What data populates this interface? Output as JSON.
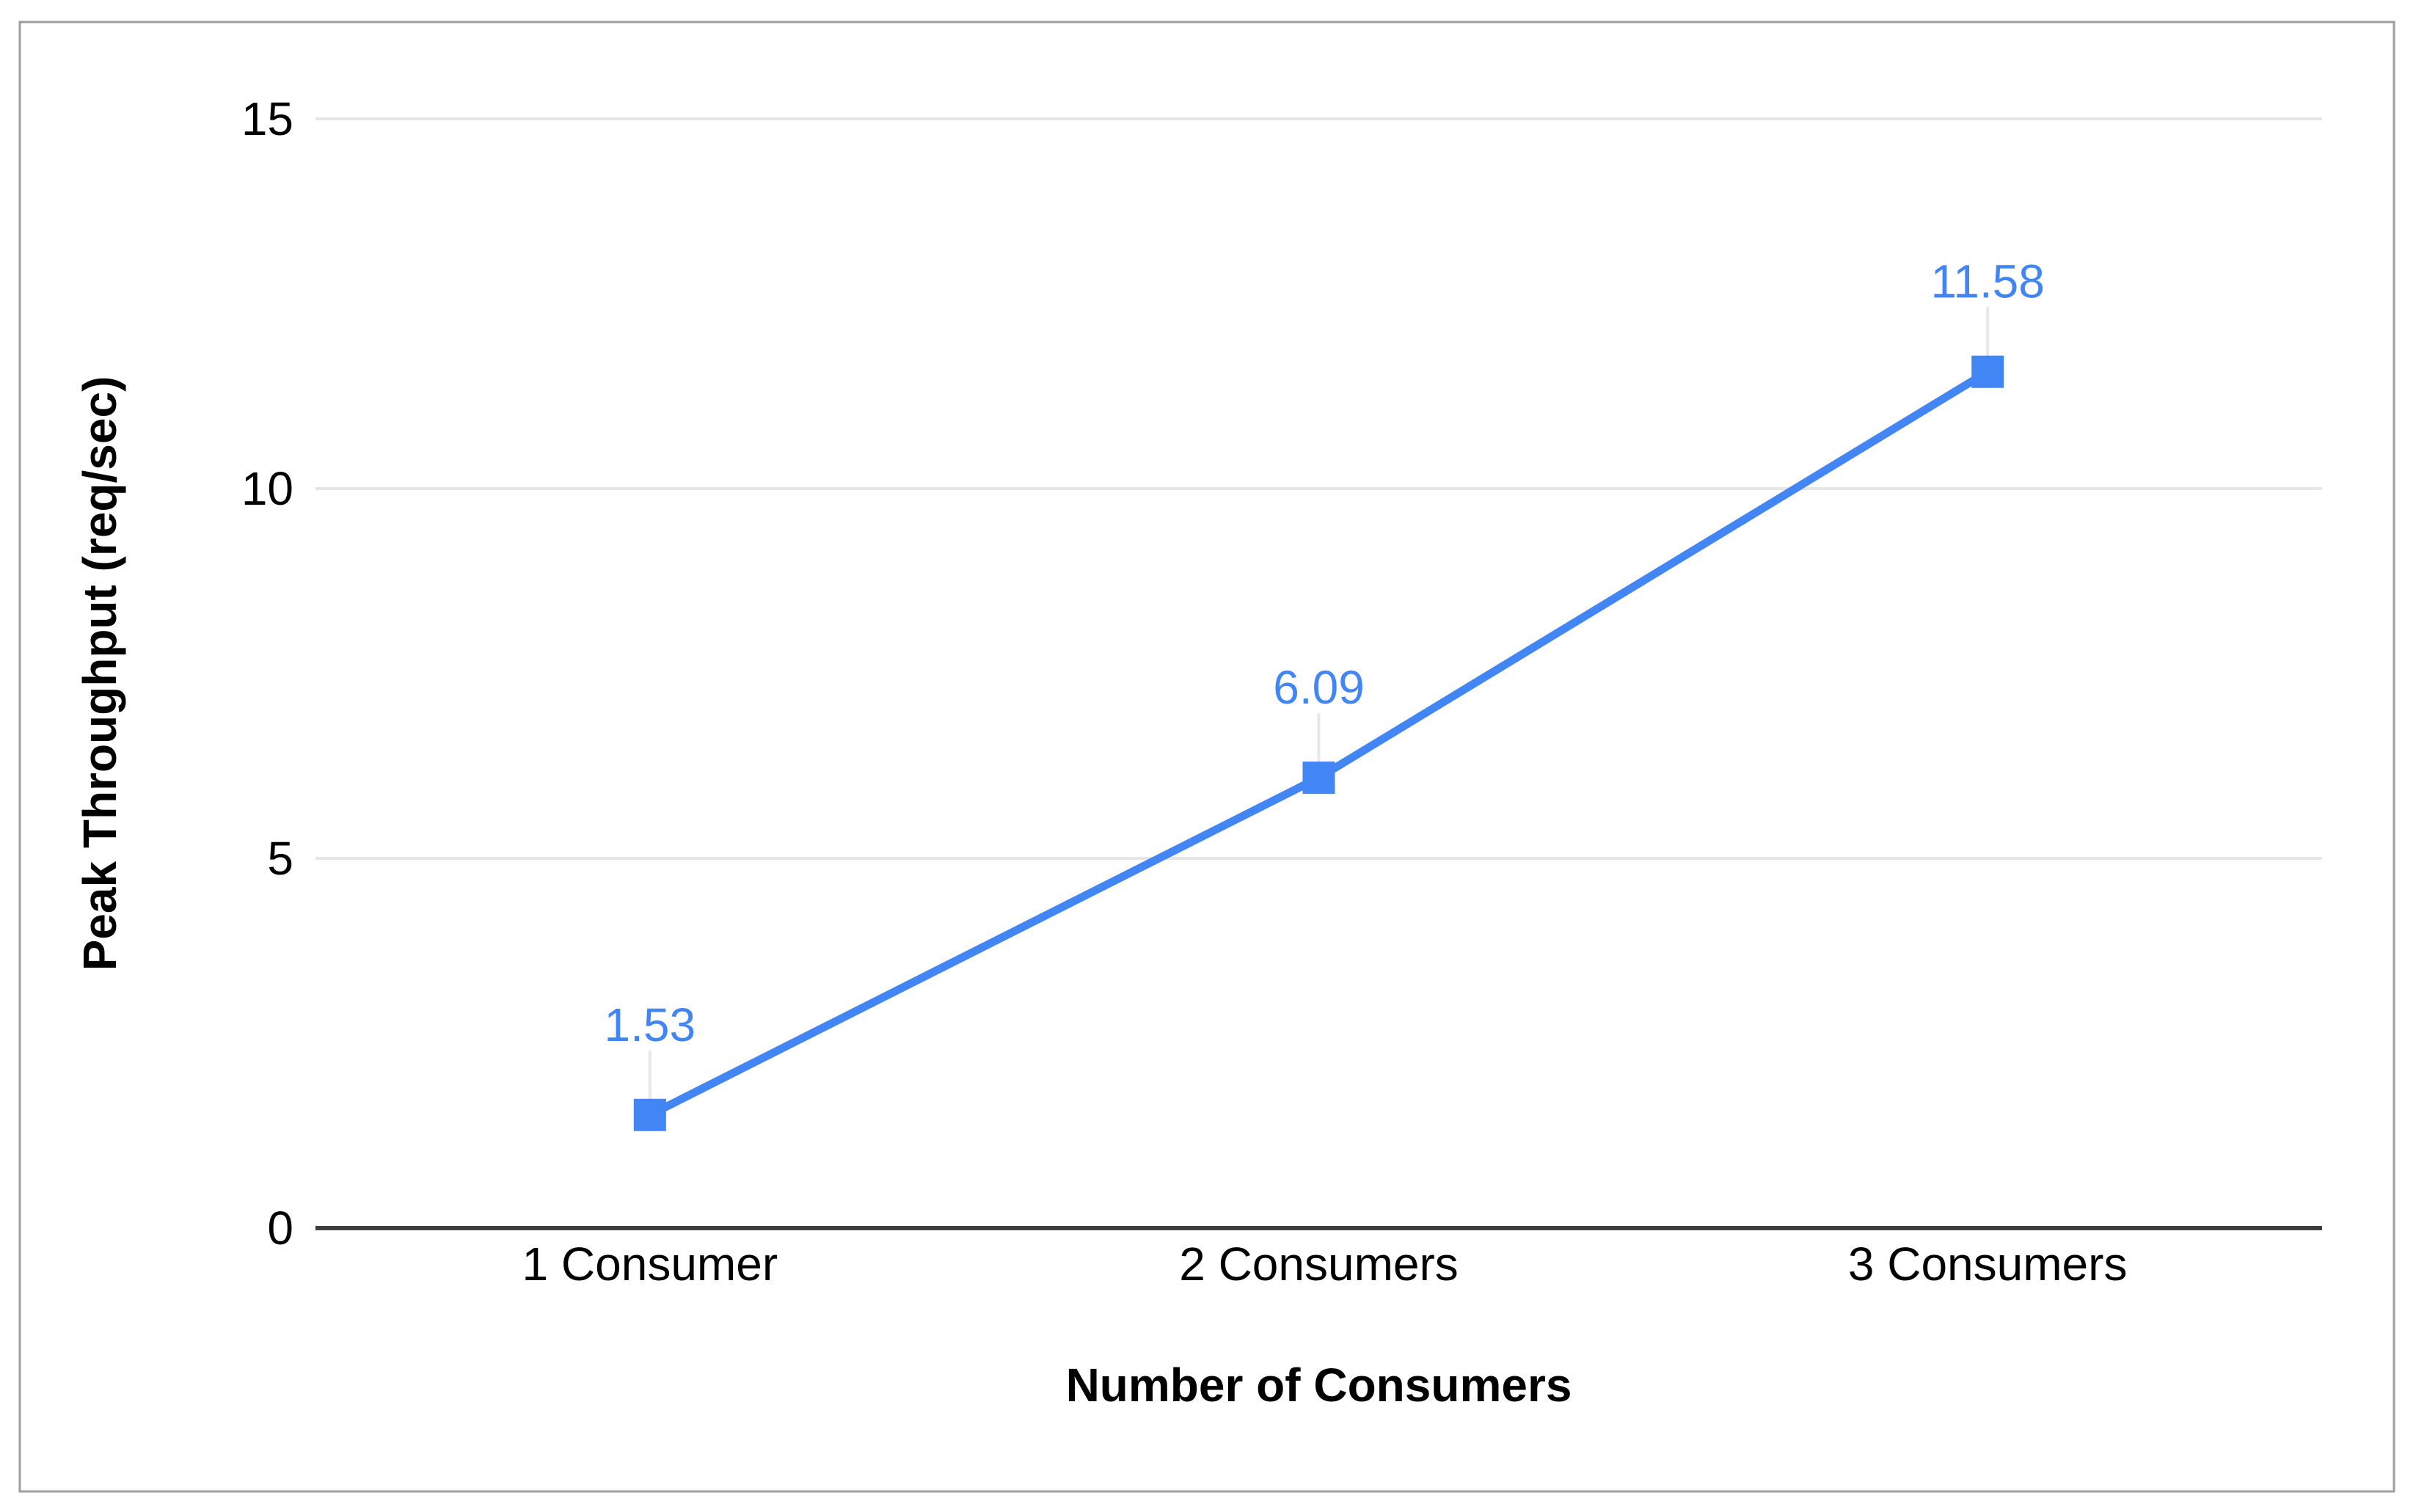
{
  "chart_data": {
    "type": "line",
    "title": "",
    "categories": [
      "1 Consumer",
      "2 Consumers",
      "3 Consumers"
    ],
    "series": [
      {
        "name": "Peak Throughput",
        "values": [
          1.53,
          6.09,
          11.58
        ],
        "data_labels": [
          "1.53",
          "6.09",
          "11.58"
        ]
      }
    ],
    "xlabel": "Number of Consumers",
    "ylabel": "Peak Throughput (req/sec)",
    "ylim": [
      0,
      15
    ],
    "yticks": [
      0,
      5,
      10,
      15
    ],
    "tick_labels": [
      "0",
      "5",
      "10",
      "15"
    ],
    "grid": "horizontal-on",
    "legend": "none",
    "marker_shape": "square",
    "colors": {
      "series_line": "#4285f4",
      "marker_fill": "#4285f4",
      "value_label": "#4285f4",
      "gridline": "#e6e6e6",
      "leader_line": "#e8e8e8",
      "zero_axis_line": "#3d3d3d",
      "frame_border": "#9e9e9e",
      "background": "#ffffff",
      "text": "#000000"
    }
  }
}
